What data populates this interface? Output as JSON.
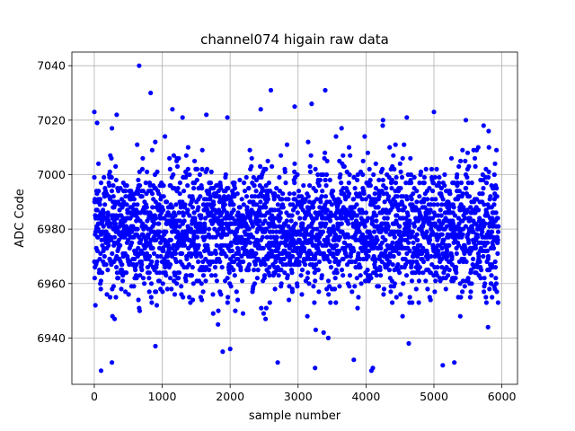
{
  "chart_data": {
    "type": "scatter",
    "title": "channel074 higain raw data",
    "xlabel": "sample number",
    "ylabel": "ADC Code",
    "xlim": [
      -330,
      6230
    ],
    "ylim": [
      6923,
      7045
    ],
    "xticks": [
      0,
      1000,
      2000,
      3000,
      4000,
      5000,
      6000
    ],
    "yticks": [
      6940,
      6960,
      6980,
      7000,
      7020,
      7040
    ],
    "grid": true,
    "marker_color": "#0000ff",
    "series": [
      {
        "n_points": 5950,
        "typical_range": [
          6955,
          7005
        ],
        "center": 6980,
        "outliers": [
          {
            "x": 0,
            "y": 7023
          },
          {
            "x": 100,
            "y": 6928
          },
          {
            "x": 260,
            "y": 6931
          },
          {
            "x": 330,
            "y": 7022
          },
          {
            "x": 660,
            "y": 7040
          },
          {
            "x": 830,
            "y": 7030
          },
          {
            "x": 900,
            "y": 6937
          },
          {
            "x": 1150,
            "y": 7024
          },
          {
            "x": 1300,
            "y": 7021
          },
          {
            "x": 1650,
            "y": 7022
          },
          {
            "x": 1960,
            "y": 7021
          },
          {
            "x": 2000,
            "y": 6936
          },
          {
            "x": 2450,
            "y": 7024
          },
          {
            "x": 2600,
            "y": 7031
          },
          {
            "x": 2700,
            "y": 6931
          },
          {
            "x": 2950,
            "y": 7025
          },
          {
            "x": 3200,
            "y": 7026
          },
          {
            "x": 3250,
            "y": 6929
          },
          {
            "x": 3400,
            "y": 7031
          },
          {
            "x": 3820,
            "y": 6932
          },
          {
            "x": 4080,
            "y": 6928
          },
          {
            "x": 4100,
            "y": 6929
          },
          {
            "x": 4250,
            "y": 7020
          },
          {
            "x": 4600,
            "y": 7021
          },
          {
            "x": 5000,
            "y": 7023
          },
          {
            "x": 5130,
            "y": 6930
          },
          {
            "x": 5300,
            "y": 6931
          },
          {
            "x": 5470,
            "y": 7020
          }
        ]
      }
    ]
  }
}
